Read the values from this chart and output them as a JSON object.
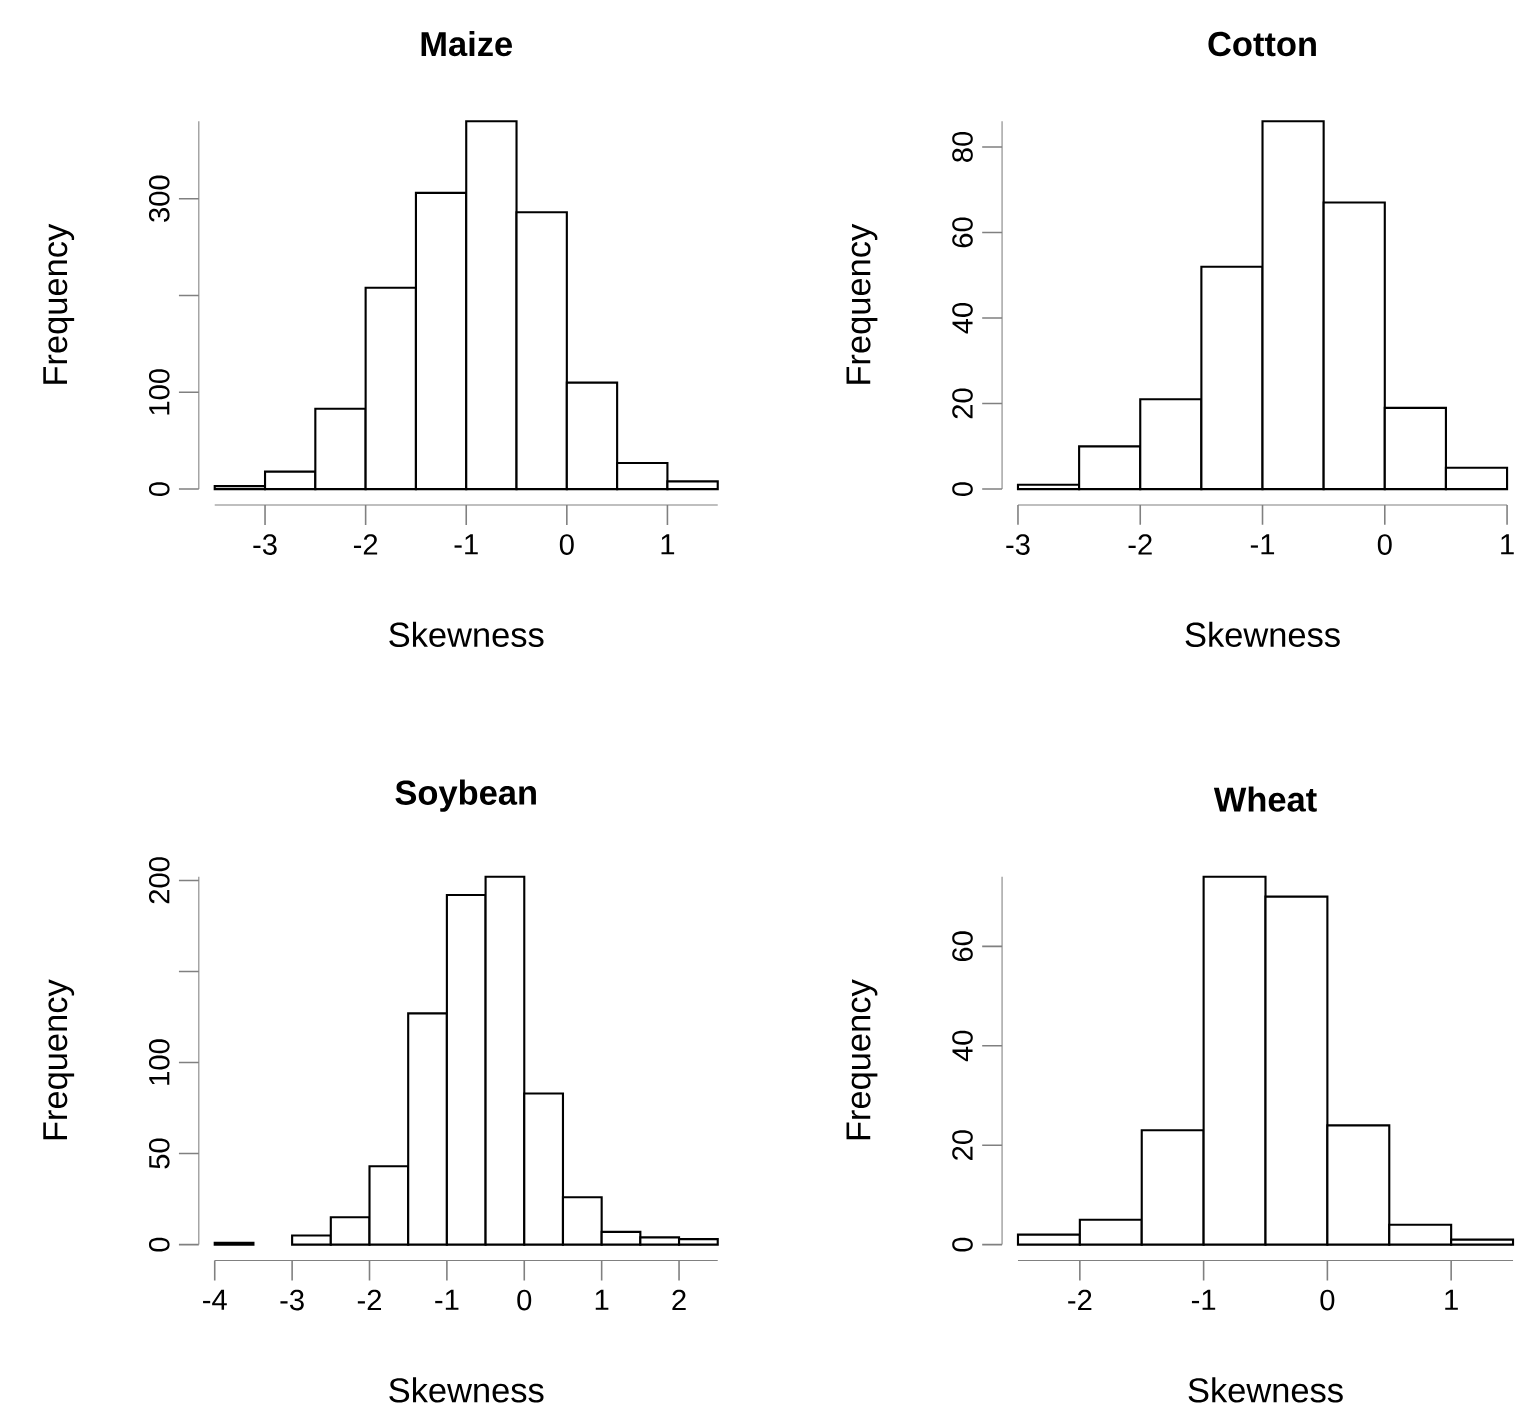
{
  "chart_data": [
    {
      "type": "histogram",
      "title": "Maize",
      "xlabel": "Skewness",
      "ylabel": "Frequency",
      "color": "#ffffff",
      "bins": [
        -3.5,
        -3,
        -2.5,
        -2,
        -1.5,
        -1,
        -0.5,
        0,
        0.5,
        1,
        1.5
      ],
      "values": [
        3,
        18,
        83,
        208,
        306,
        380,
        286,
        110,
        27,
        8
      ],
      "xlim": [
        -3.5,
        1.5
      ],
      "ylim": [
        0,
        380
      ],
      "xticks": [
        -3,
        -2,
        -1,
        0,
        1
      ],
      "yticks": [
        0,
        100,
        {
          "value": 200,
          "label": null
        },
        300
      ]
    },
    {
      "type": "histogram",
      "title": "Cotton",
      "xlabel": "Skewness",
      "ylabel": "Frequency",
      "color": "#ffffff",
      "bins": [
        -3,
        -2.5,
        -2,
        -1.5,
        -1,
        -0.5,
        0,
        0.5,
        1
      ],
      "values": [
        1,
        10,
        21,
        52,
        86,
        67,
        19,
        5
      ],
      "xlim": [
        -3,
        1
      ],
      "ylim": [
        0,
        86
      ],
      "xticks": [
        -3,
        -2,
        -1,
        0,
        1
      ],
      "yticks": [
        0,
        20,
        40,
        60,
        80
      ]
    },
    {
      "type": "histogram",
      "title": "Soybean",
      "xlabel": "Skewness",
      "ylabel": "Frequency",
      "color": "#ffffff",
      "bins": [
        -4,
        -3.5,
        -3,
        -2.5,
        -2,
        -1.5,
        -1,
        -0.5,
        0,
        0.5,
        1,
        1.5,
        2,
        2.5
      ],
      "values": [
        1,
        0,
        5,
        15,
        43,
        127,
        192,
        202,
        83,
        26,
        7,
        4,
        3
      ],
      "xlim": [
        -4,
        2.5
      ],
      "ylim": [
        0,
        202
      ],
      "xticks": [
        -4,
        -3,
        -2,
        -1,
        0,
        1,
        2
      ],
      "yticks": [
        0,
        50,
        100,
        {
          "value": 150,
          "label": null
        },
        200
      ]
    },
    {
      "type": "histogram",
      "title": "Wheat",
      "xlabel": "Skewness",
      "ylabel": "Frequency",
      "color": "#ffffff",
      "bins": [
        -2.5,
        -2,
        -1.5,
        -1,
        -0.5,
        0,
        0.5,
        1,
        1.5
      ],
      "values": [
        2,
        5,
        23,
        74,
        70,
        24,
        4,
        1
      ],
      "xlim": [
        -2.5,
        1.5
      ],
      "ylim": [
        0,
        74
      ],
      "xticks": [
        -2,
        -1,
        0,
        1
      ],
      "yticks": [
        0,
        20,
        40,
        60
      ]
    }
  ]
}
